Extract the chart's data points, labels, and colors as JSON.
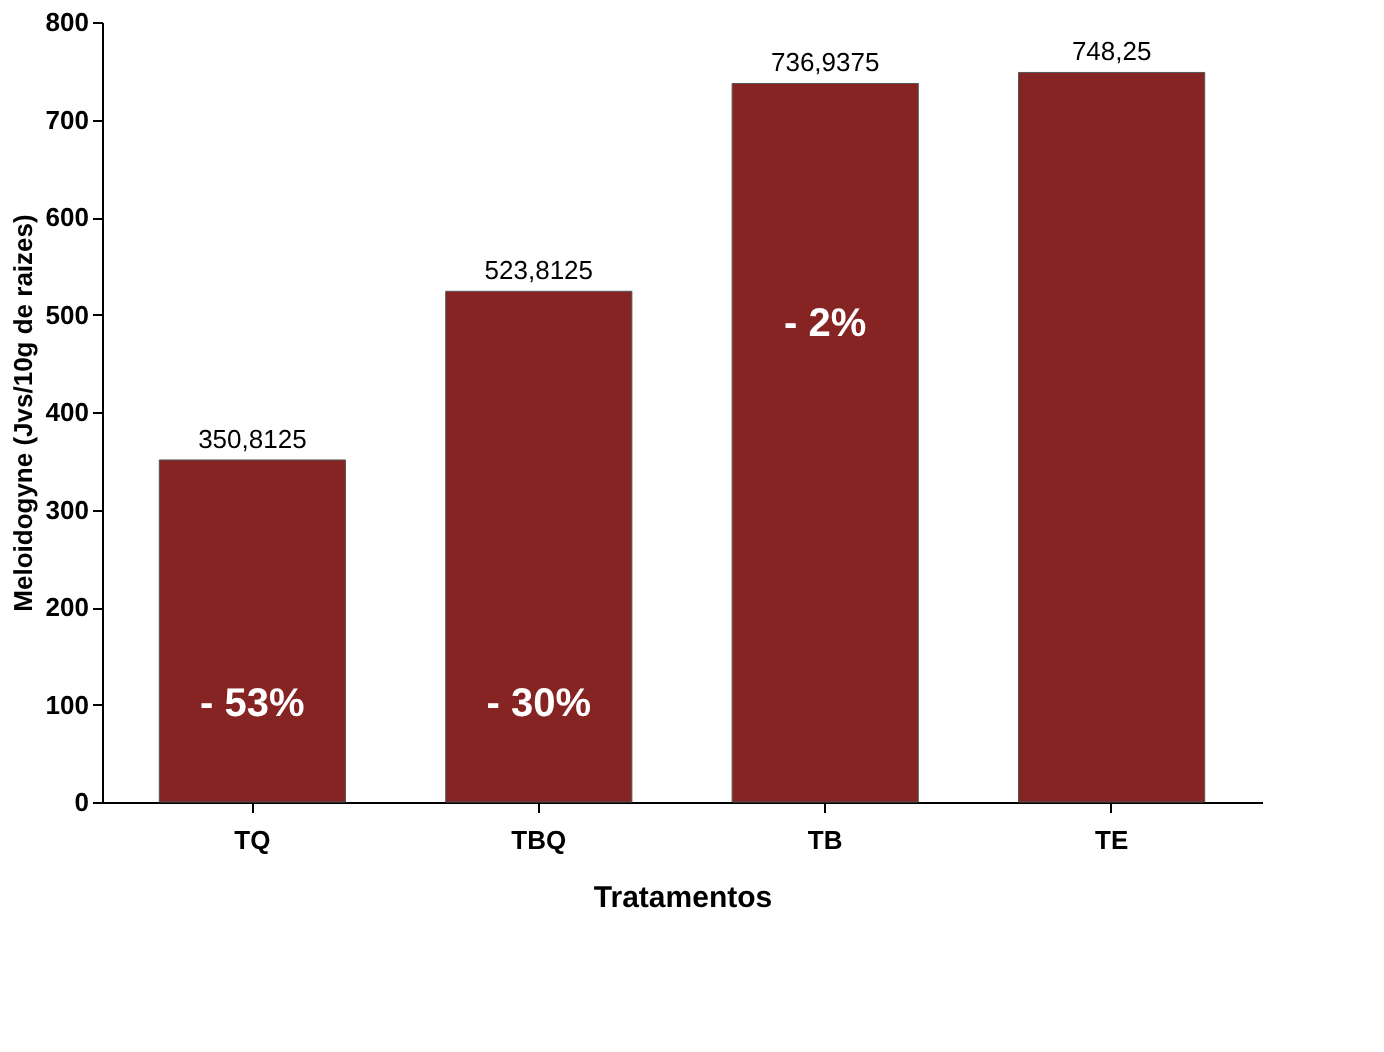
{
  "chart_data": {
    "type": "bar",
    "xlabel": "Tratamentos",
    "ylabel": "Meloidogyne (Jvs/10g de raizes)",
    "categories": [
      "TQ",
      "TBQ",
      "TB",
      "TE"
    ],
    "values": [
      350.8125,
      523.8125,
      736.9375,
      748.25
    ],
    "value_labels": [
      "350,8125",
      "523,8125",
      "736,9375",
      "748,25"
    ],
    "color": "#862424",
    "ylim": [
      0,
      800
    ],
    "yticks": [
      0,
      100,
      200,
      300,
      400,
      500,
      600,
      700,
      800
    ],
    "grid": false,
    "annotations": [
      "- 53%",
      "- 30%",
      "- 2%"
    ]
  }
}
